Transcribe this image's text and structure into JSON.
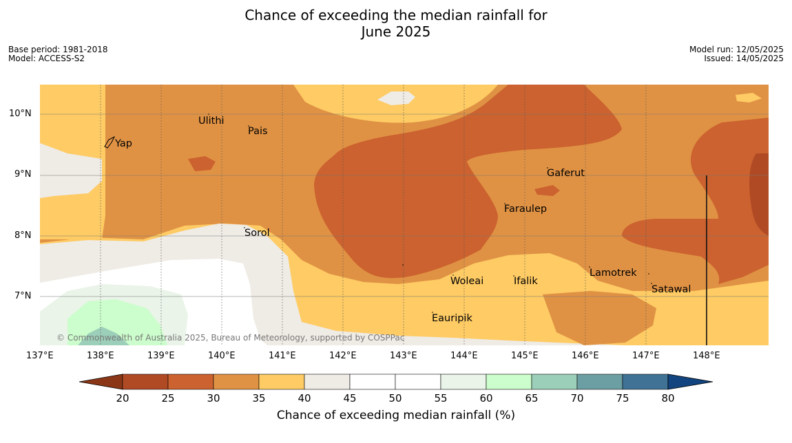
{
  "title_line1": "Chance of exceeding the median rainfall for",
  "title_line2": "June 2025",
  "meta_left": {
    "base_period": "Base period: 1981-2018",
    "model": "Model: ACCESS-S2"
  },
  "meta_right": {
    "model_run": "Model run: 12/05/2025",
    "issued": "Issued: 14/05/2025"
  },
  "copyright": "© Commonwealth of Australia 2025, Bureau of Meteorology, supported by COSPPac",
  "lon_ticks": [
    "137°E",
    "138°E",
    "139°E",
    "140°E",
    "141°E",
    "142°E",
    "143°E",
    "144°E",
    "145°E",
    "146°E",
    "147°E",
    "148°E"
  ],
  "lat_ticks": [
    "10°N",
    "9°N",
    "8°N",
    "7°N"
  ],
  "places": [
    {
      "name": "Ulithi"
    },
    {
      "name": "Pais"
    },
    {
      "name": "Yap"
    },
    {
      "name": "Gaferut"
    },
    {
      "name": "Faraulep"
    },
    {
      "name": "Sorol"
    },
    {
      "name": "Lamotrek"
    },
    {
      "name": "Woleai"
    },
    {
      "name": "Ifalik"
    },
    {
      "name": "Satawal"
    },
    {
      "name": "Eauripik"
    }
  ],
  "colorbar": {
    "title": "Chance of exceeding median rainfall (%)",
    "ticks": [
      "20",
      "25",
      "30",
      "35",
      "40",
      "45",
      "50",
      "55",
      "60",
      "65",
      "70",
      "75",
      "80"
    ],
    "colors": [
      "#b04a25",
      "#cb622f",
      "#e09244",
      "#fecb64",
      "#efebe5",
      "#ffffff",
      "#ffffff",
      "#eaf4e9",
      "#ccfdcc",
      "#9ccfb9",
      "#6c9fa3",
      "#3f7294"
    ],
    "under_color": "#8b3717",
    "over_color": "#12457f"
  }
}
